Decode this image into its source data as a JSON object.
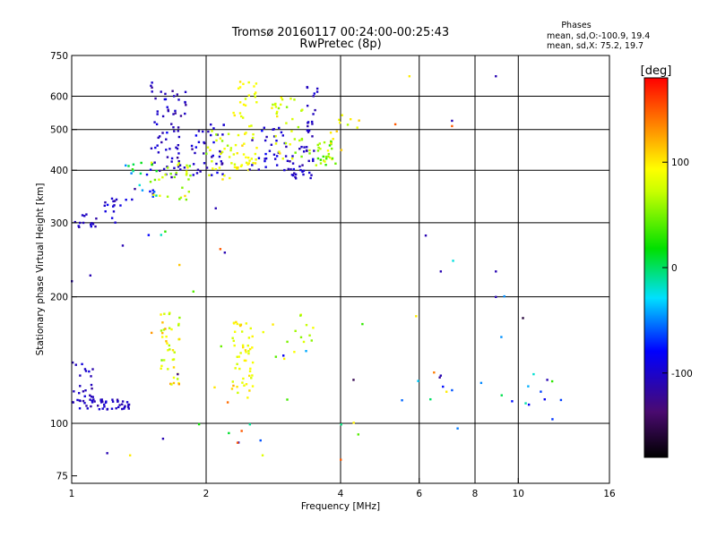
{
  "chart_data": {
    "type": "scatter",
    "title": "Tromsø 20160117 00:24:00-00:25:43",
    "subtitle": "RwPretec (8p)",
    "xlabel": "Frequency [MHz]",
    "ylabel": "Stationary phase Virtual Height [km]",
    "x_scale": "log",
    "y_scale": "log",
    "xlim": [
      1,
      16
    ],
    "ylim": [
      72,
      750
    ],
    "x_ticks": [
      1,
      2,
      4,
      6,
      8,
      10,
      16
    ],
    "x_tick_labels": [
      "1",
      "2",
      "4",
      "6",
      "8",
      "10",
      "16"
    ],
    "y_ticks": [
      75,
      100,
      200,
      300,
      400,
      500,
      600,
      750
    ],
    "y_tick_labels": [
      "75",
      "100",
      "200",
      "300",
      "400",
      "500",
      "600",
      "750"
    ],
    "grid_x": [
      2,
      4,
      6,
      8,
      10
    ],
    "grid_y": [
      100,
      200,
      300,
      400,
      500,
      600
    ],
    "grid": true,
    "stats_header": "Phases",
    "stats_lines": [
      "mean, sd,O:-100.9, 19.4",
      "mean, sd,X:  75.2, 19.7"
    ],
    "colorbar": {
      "label": "[deg]",
      "range": [
        -180,
        180
      ],
      "tick_values": [
        -100,
        0,
        100
      ],
      "tick_labels": [
        "-100",
        "0",
        "100"
      ],
      "colormap": "black-purple-blue-cyan-green-yellow-red"
    },
    "clusters": [
      {
        "mode": "O",
        "x_range": [
          1.0,
          1.16
        ],
        "y_range": [
          290,
          315
        ],
        "n": 14,
        "phase_mean": -105,
        "phase_sd": 10
      },
      {
        "mode": "O",
        "x_range": [
          1.15,
          1.32
        ],
        "y_range": [
          300,
          345
        ],
        "n": 14,
        "phase_mean": -100,
        "phase_sd": 12
      },
      {
        "mode": "mixed",
        "x_range": [
          1.3,
          1.55
        ],
        "y_range": [
          330,
          420
        ],
        "n": 22,
        "phase_mean": -40,
        "phase_sd": 70
      },
      {
        "mode": "O",
        "x_range": [
          1.5,
          1.8
        ],
        "y_range": [
          380,
          650
        ],
        "n": 70,
        "phase_mean": -105,
        "phase_sd": 12
      },
      {
        "mode": "X",
        "x_range": [
          1.5,
          1.85
        ],
        "y_range": [
          340,
          420
        ],
        "n": 30,
        "phase_mean": 70,
        "phase_sd": 30
      },
      {
        "mode": "O",
        "x_range": [
          1.85,
          2.2
        ],
        "y_range": [
          380,
          520
        ],
        "n": 40,
        "phase_mean": -100,
        "phase_sd": 12
      },
      {
        "mode": "X",
        "x_range": [
          2.0,
          2.3
        ],
        "y_range": [
          380,
          500
        ],
        "n": 25,
        "phase_mean": 80,
        "phase_sd": 20
      },
      {
        "mode": "X",
        "x_range": [
          2.3,
          2.6
        ],
        "y_range": [
          400,
          660
        ],
        "n": 55,
        "phase_mean": 90,
        "phase_sd": 12
      },
      {
        "mode": "O",
        "x_range": [
          2.5,
          3.0
        ],
        "y_range": [
          400,
          520
        ],
        "n": 30,
        "phase_mean": -100,
        "phase_sd": 12
      },
      {
        "mode": "X",
        "x_range": [
          2.8,
          3.3
        ],
        "y_range": [
          420,
          600
        ],
        "n": 35,
        "phase_mean": 80,
        "phase_sd": 20
      },
      {
        "mode": "O",
        "x_range": [
          3.0,
          3.5
        ],
        "y_range": [
          380,
          460
        ],
        "n": 35,
        "phase_mean": -105,
        "phase_sd": 10
      },
      {
        "mode": "X",
        "x_range": [
          3.4,
          3.9
        ],
        "y_range": [
          410,
          470
        ],
        "n": 30,
        "phase_mean": 60,
        "phase_sd": 25
      },
      {
        "mode": "O",
        "x_range": [
          3.35,
          3.55
        ],
        "y_range": [
          480,
          660
        ],
        "n": 18,
        "phase_mean": -105,
        "phase_sd": 10
      },
      {
        "mode": "X",
        "x_range": [
          3.8,
          4.4
        ],
        "y_range": [
          440,
          560
        ],
        "n": 12,
        "phase_mean": 90,
        "phase_sd": 20
      },
      {
        "mode": "O",
        "x_range": [
          1.0,
          1.12
        ],
        "y_range": [
          112,
          140
        ],
        "n": 25,
        "phase_mean": -105,
        "phase_sd": 10
      },
      {
        "mode": "O",
        "x_range": [
          1.0,
          1.35
        ],
        "y_range": [
          108,
          114
        ],
        "n": 45,
        "phase_mean": -105,
        "phase_sd": 10
      },
      {
        "mode": "X",
        "x_range": [
          1.58,
          1.75
        ],
        "y_range": [
          120,
          185
        ],
        "n": 40,
        "phase_mean": 80,
        "phase_sd": 30
      },
      {
        "mode": "X",
        "x_range": [
          2.28,
          2.55
        ],
        "y_range": [
          115,
          175
        ],
        "n": 50,
        "phase_mean": 90,
        "phase_sd": 15
      },
      {
        "mode": "X",
        "x_range": [
          2.6,
          3.5
        ],
        "y_range": [
          130,
          185
        ],
        "n": 15,
        "phase_mean": 80,
        "phase_sd": 30
      },
      {
        "mode": "mixed",
        "x_range": [
          4.0,
          12.5
        ],
        "y_range": [
          110,
          130
        ],
        "n": 12,
        "phase_mean": -40,
        "phase_sd": 70
      },
      {
        "mode": "mixed",
        "x_range": [
          1.0,
          12.0
        ],
        "y_range": [
          80,
          300
        ],
        "n": 35,
        "phase_mean": 0,
        "phase_sd": 100
      }
    ],
    "points": [
      {
        "x": 8.9,
        "y": 670,
        "phase": -110
      },
      {
        "x": 7.1,
        "y": 525,
        "phase": -110
      },
      {
        "x": 7.1,
        "y": 510,
        "phase": 150
      },
      {
        "x": 6.2,
        "y": 280,
        "phase": -110
      },
      {
        "x": 6.7,
        "y": 230,
        "phase": -110
      },
      {
        "x": 8.9,
        "y": 230,
        "phase": -110
      },
      {
        "x": 8.9,
        "y": 200,
        "phase": -110
      },
      {
        "x": 11.6,
        "y": 127,
        "phase": -110
      },
      {
        "x": 11.9,
        "y": 126,
        "phase": 30
      },
      {
        "x": 5.7,
        "y": 670,
        "phase": 100
      },
      {
        "x": 5.3,
        "y": 515,
        "phase": 150
      },
      {
        "x": 1.6,
        "y": 92,
        "phase": -110
      },
      {
        "x": 2.4,
        "y": 96,
        "phase": 150
      },
      {
        "x": 2.35,
        "y": 90,
        "phase": 150
      },
      {
        "x": 2.3,
        "y": 123,
        "phase": 120
      },
      {
        "x": 1.2,
        "y": 85,
        "phase": -110
      },
      {
        "x": 1.35,
        "y": 84,
        "phase": 100
      },
      {
        "x": 1.0,
        "y": 218,
        "phase": -110
      },
      {
        "x": 1.1,
        "y": 225,
        "phase": -110
      },
      {
        "x": 1.3,
        "y": 265,
        "phase": -110
      },
      {
        "x": 2.1,
        "y": 325,
        "phase": -110
      },
      {
        "x": 2.15,
        "y": 260,
        "phase": 150
      },
      {
        "x": 2.2,
        "y": 255,
        "phase": -110
      },
      {
        "x": 4.0,
        "y": 82,
        "phase": 150
      },
      {
        "x": 5.9,
        "y": 180,
        "phase": 100
      },
      {
        "x": 6.7,
        "y": 130,
        "phase": -110
      },
      {
        "x": 6.9,
        "y": 119,
        "phase": 100
      },
      {
        "x": 7.1,
        "y": 120,
        "phase": -60
      }
    ]
  }
}
